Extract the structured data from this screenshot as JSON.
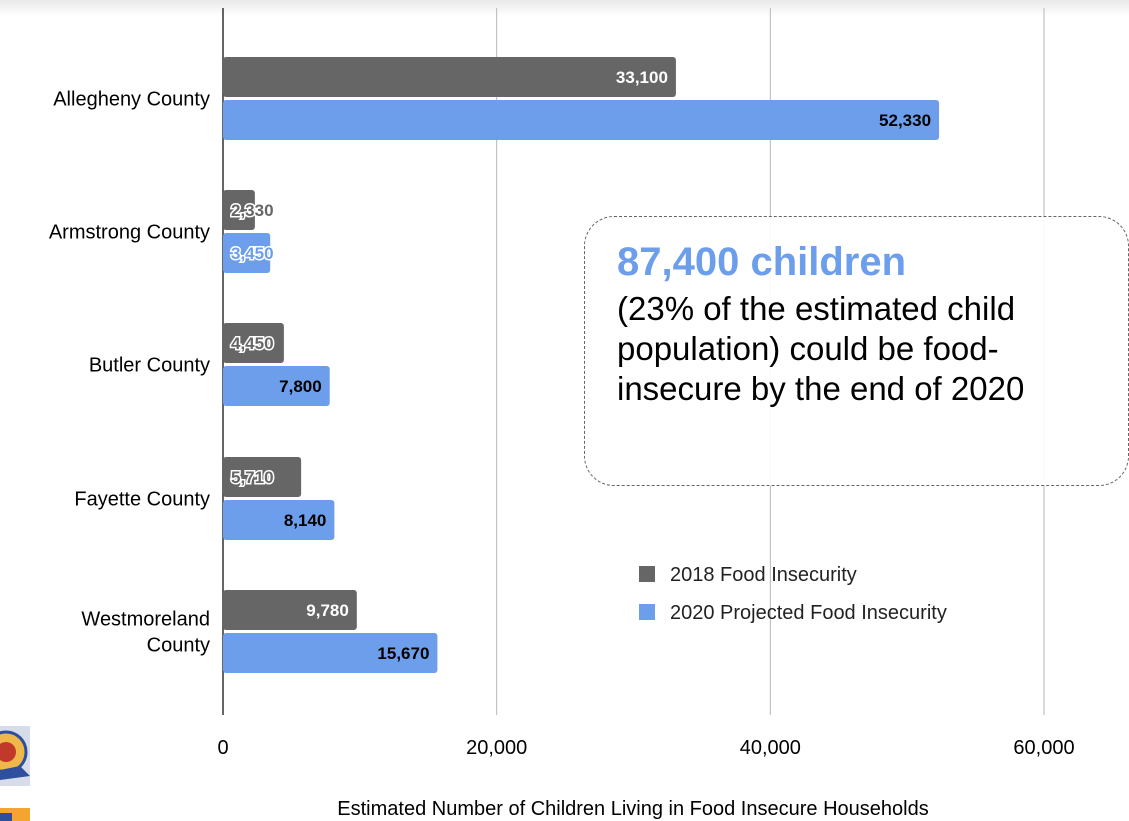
{
  "chart_data": {
    "type": "bar",
    "orientation": "horizontal",
    "categories": [
      "Allegheny County",
      "Armstrong County",
      "Butler County",
      "Fayette County",
      "Westmoreland County"
    ],
    "series": [
      {
        "name": "2018 Food Insecurity",
        "color": "#666666",
        "values": [
          33100,
          2330,
          4450,
          5710,
          9780
        ],
        "labels": [
          "33,100",
          "2,330",
          "4,450",
          "5,710",
          "9,780"
        ]
      },
      {
        "name": "2020 Projected Food Insecurity",
        "color": "#6d9eeb",
        "values": [
          52330,
          3450,
          7800,
          8140,
          15670
        ],
        "labels": [
          "52,330",
          "3,450",
          "7,800",
          "8,140",
          "15,670"
        ]
      }
    ],
    "xlabel": "Estimated Number of Children Living in Food Insecure Households",
    "xlim": [
      0,
      60000
    ],
    "xticks": [
      0,
      20000,
      40000,
      60000
    ],
    "xtick_labels": [
      "0",
      "20,000",
      "40,000",
      "60,000"
    ],
    "grid": true,
    "legend": "bottom-right",
    "annotation": {
      "headline": "87,400 children",
      "body": "(23% of the estimated child population) could be food-insecure by the end of 2020"
    }
  }
}
